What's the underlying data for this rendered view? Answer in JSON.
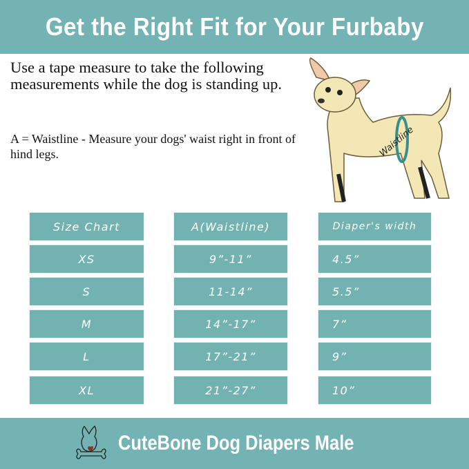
{
  "header": {
    "title": "Get the Right Fit for Your Furbaby"
  },
  "instructions": {
    "intro": "Use a tape measure to take the following measurements while the dog is standing up.",
    "waist_note": "A = Waistline - Measure your dogs' waist right in front of hind legs."
  },
  "illustration": {
    "label": "Waistline"
  },
  "size_table": {
    "headers": [
      "Size Chart",
      "A(Waistline)",
      "Diaper's width"
    ],
    "rows": [
      [
        "XS",
        "9”-11”",
        "4.5”"
      ],
      [
        "S",
        "11-14”",
        "5.5”"
      ],
      [
        "M",
        "14”-17”",
        "7”"
      ],
      [
        "L",
        "17”-21”",
        "9”"
      ],
      [
        "XL",
        "21”-27”",
        "10”"
      ]
    ]
  },
  "footer": {
    "brand": "CuteBone Dog Diapers Male",
    "logo": "dog-bone-logo"
  },
  "colors": {
    "teal": "#73b3b4"
  }
}
